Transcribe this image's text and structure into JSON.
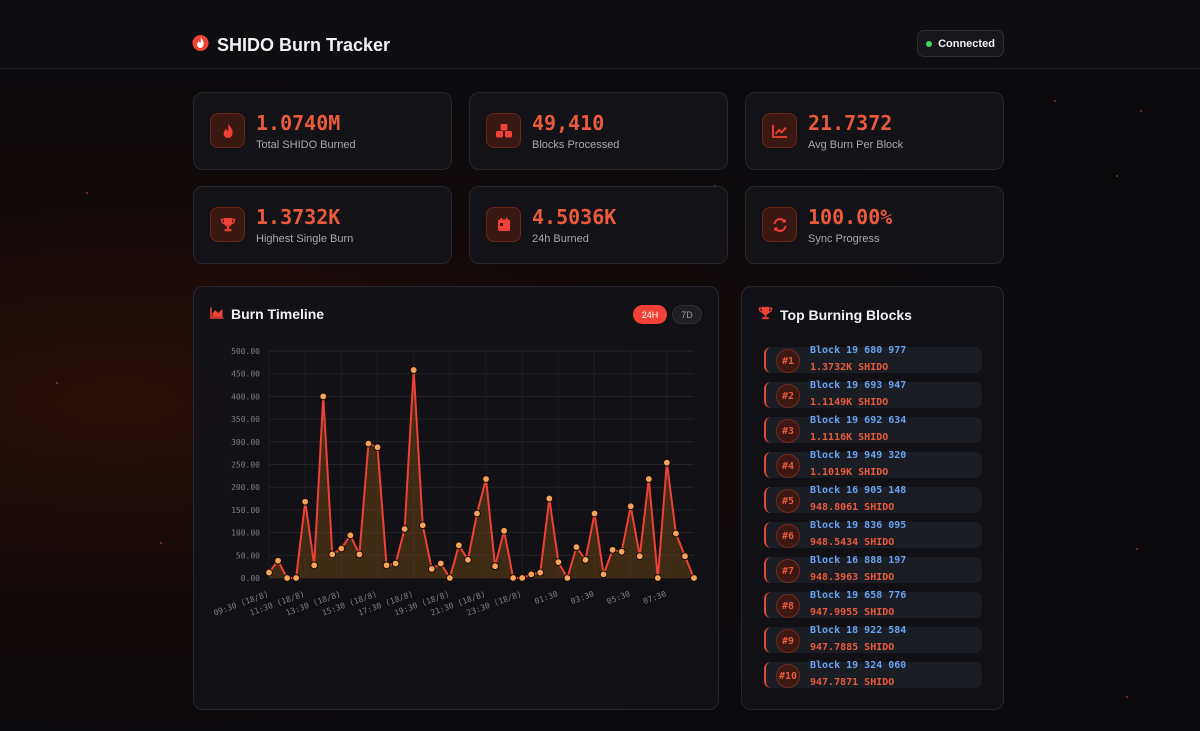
{
  "header": {
    "title": "SHIDO Burn Tracker",
    "status": "Connected",
    "status_color": "#3ddc5a",
    "brand_icon": "flame-icon"
  },
  "stats": [
    {
      "value": "1.0740M",
      "label": "Total SHIDO Burned",
      "icon": "flame-icon"
    },
    {
      "value": "49,410",
      "label": "Blocks Processed",
      "icon": "cubes-icon"
    },
    {
      "value": "21.7372",
      "label": "Avg Burn Per Block",
      "icon": "trend-chart-icon"
    },
    {
      "value": "1.3732K",
      "label": "Highest Single Burn",
      "icon": "trophy-icon"
    },
    {
      "value": "4.5036K",
      "label": "24h Burned",
      "icon": "calendar-icon"
    },
    {
      "value": "100.00%",
      "label": "Sync Progress",
      "icon": "sync-icon"
    }
  ],
  "timeline": {
    "title": "Burn Timeline",
    "icon": "area-chart-icon",
    "ranges": [
      "24H",
      "7D"
    ],
    "active_range": "24H"
  },
  "top_blocks": {
    "title": "Top Burning Blocks",
    "icon": "trophy-icon",
    "items": [
      {
        "rank": "#1",
        "block": "Block 19 680 977",
        "amount": "1.3732K SHIDO"
      },
      {
        "rank": "#2",
        "block": "Block 19 693 947",
        "amount": "1.1149K SHIDO"
      },
      {
        "rank": "#3",
        "block": "Block 19 692 634",
        "amount": "1.1116K SHIDO"
      },
      {
        "rank": "#4",
        "block": "Block 19 949 320",
        "amount": "1.1019K SHIDO"
      },
      {
        "rank": "#5",
        "block": "Block 16 905 148",
        "amount": "948.8061 SHIDO"
      },
      {
        "rank": "#6",
        "block": "Block 19 836 095",
        "amount": "948.5434 SHIDO"
      },
      {
        "rank": "#7",
        "block": "Block 16 888 197",
        "amount": "948.3963 SHIDO"
      },
      {
        "rank": "#8",
        "block": "Block 19 658 776",
        "amount": "947.9955 SHIDO"
      },
      {
        "rank": "#9",
        "block": "Block 18 922 584",
        "amount": "947.7885 SHIDO"
      },
      {
        "rank": "#10",
        "block": "Block 19 324 060",
        "amount": "947.7871 SHIDO"
      }
    ]
  },
  "colors": {
    "accent": "#ea5a3c",
    "line": "#ef4136",
    "point": "#f5a45a",
    "block_text": "#6aa2f0"
  },
  "chart_data": {
    "type": "area",
    "ylim": [
      0,
      500
    ],
    "yticks": [
      "0.00",
      "50.00",
      "100.00",
      "150.00",
      "200.00",
      "250.00",
      "300.00",
      "350.00",
      "400.00",
      "450.00",
      "500.00"
    ],
    "x_tick_labels": [
      "09:30 (18/8)",
      "11:30 (18/8)",
      "13:30 (18/8)",
      "15:30 (18/8)",
      "17:30 (18/8)",
      "19:30 (18/8)",
      "21:30 (18/8)",
      "23:30 (18/8)",
      "01:30",
      "03:30",
      "05:30",
      "07:30"
    ],
    "series": [
      {
        "values": [
          12,
          38,
          0,
          0,
          168,
          28,
          400,
          52,
          65,
          94,
          52,
          296,
          288,
          28,
          32,
          108,
          458,
          116,
          20,
          32,
          0,
          72,
          40,
          142,
          218,
          26,
          104,
          0,
          0,
          8,
          12,
          175,
          35,
          0,
          68,
          40,
          142,
          8,
          62,
          58,
          158,
          48,
          218,
          0,
          254,
          98,
          48,
          0
        ]
      }
    ]
  }
}
